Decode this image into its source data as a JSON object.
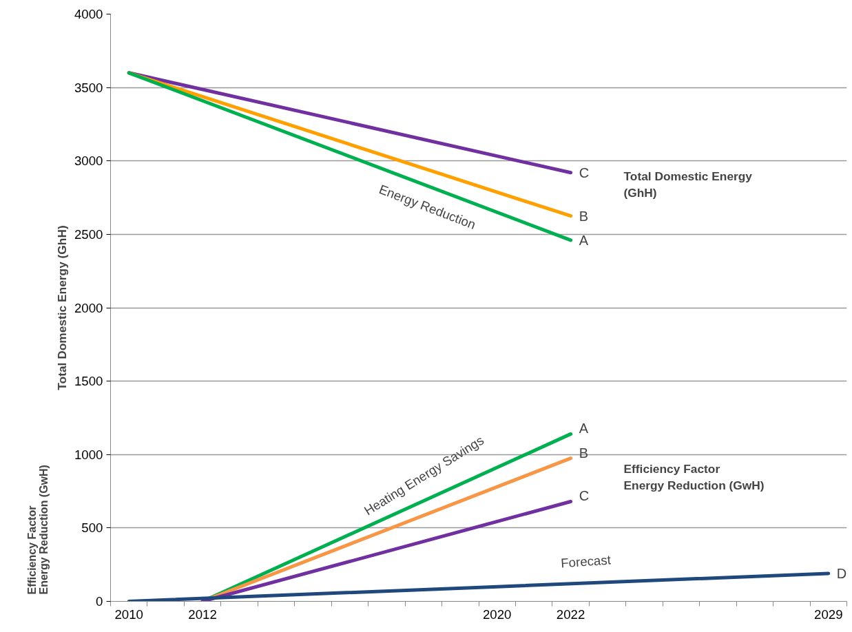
{
  "chart_data": {
    "type": "line",
    "ylabel": "Total Domestic Energy (GhH)",
    "xlim": [
      2009.5,
      2029.5
    ],
    "xticks": [
      {
        "value": 2010,
        "label": "2010"
      },
      {
        "value": 2012,
        "label": "2012"
      },
      {
        "value": 2020,
        "label": "2020"
      },
      {
        "value": 2022,
        "label": "2022"
      },
      {
        "value": 2029,
        "label": "2029"
      },
      {
        "value": 2009.5,
        "label": null
      },
      {
        "value": 2010.5,
        "label": null
      },
      {
        "value": 2011.5,
        "label": null
      },
      {
        "value": 2012.5,
        "label": null
      },
      {
        "value": 2013.5,
        "label": null
      },
      {
        "value": 2014.5,
        "label": null
      },
      {
        "value": 2015.5,
        "label": null
      },
      {
        "value": 2016.5,
        "label": null
      },
      {
        "value": 2017.5,
        "label": null
      },
      {
        "value": 2018.5,
        "label": null
      },
      {
        "value": 2019.5,
        "label": null
      },
      {
        "value": 2020.5,
        "label": null
      },
      {
        "value": 2021.5,
        "label": null
      },
      {
        "value": 2022.5,
        "label": null
      },
      {
        "value": 2023.5,
        "label": null
      },
      {
        "value": 2024.5,
        "label": null
      },
      {
        "value": 2025.5,
        "label": null
      },
      {
        "value": 2026.5,
        "label": null
      },
      {
        "value": 2027.5,
        "label": null
      },
      {
        "value": 2028.5,
        "label": null
      },
      {
        "value": 2029.5,
        "label": null
      }
    ],
    "ylim": [
      0,
      4000
    ],
    "yticks": [
      0,
      500,
      1000,
      1500,
      2000,
      2500,
      3000,
      3500,
      4000
    ],
    "grid": "y",
    "marker": "none",
    "line_style": "solid",
    "series": [
      {
        "name": "C",
        "color": "#7030a0",
        "x": [
          2010,
          2022
        ],
        "values": [
          3600,
          2920
        ]
      },
      {
        "name": "B",
        "color": "#ffa000",
        "x": [
          2010,
          2022
        ],
        "values": [
          3600,
          2625
        ]
      },
      {
        "name": "A",
        "color": "#00b050",
        "x": [
          2010,
          2022
        ],
        "values": [
          3600,
          2460
        ]
      },
      {
        "name": "A",
        "color": "#00b050",
        "x": [
          2012,
          2022
        ],
        "values": [
          0,
          1140
        ]
      },
      {
        "name": "B",
        "color": "#f79646",
        "x": [
          2012,
          2022
        ],
        "values": [
          0,
          975
        ]
      },
      {
        "name": "C",
        "color": "#7030a0",
        "x": [
          2012,
          2022
        ],
        "values": [
          0,
          680
        ]
      },
      {
        "name": "D",
        "color": "#1f497d",
        "x": [
          2010,
          2020,
          2029
        ],
        "values": [
          0,
          100,
          190
        ]
      }
    ],
    "annotations": [
      "Energy Reduction",
      "Heating Energy Savings",
      "Forecast",
      "Total Domestic Energy\n(GhH)",
      "Efficiency Factor\nEnergy Reduction (GwH)",
      "Efficiency Factor\nEnergy Reduction (GwH)"
    ]
  }
}
